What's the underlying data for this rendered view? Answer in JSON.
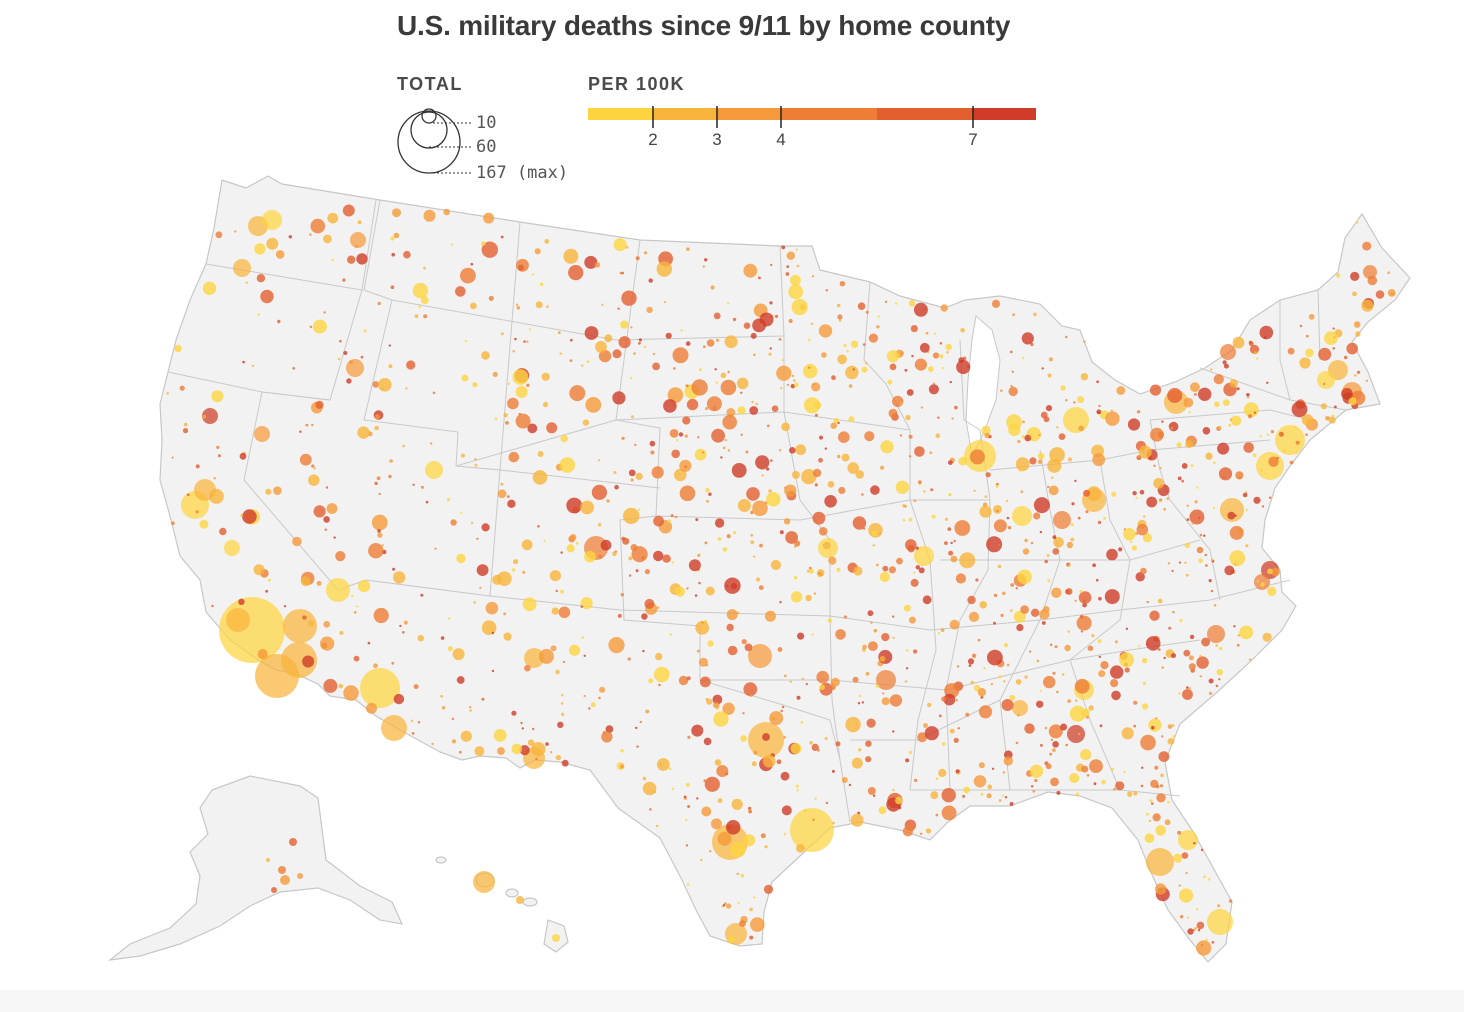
{
  "title": "U.S. military deaths since 9/11 by home county",
  "legend": {
    "total_label": "TOTAL",
    "total_values": [
      {
        "value": 10,
        "label": "10"
      },
      {
        "value": 60,
        "label": "60"
      },
      {
        "value": 167,
        "label": "167 (max)"
      }
    ],
    "rate_label": "PER 100K",
    "rate_ticks": [
      "2",
      "3",
      "4",
      "7"
    ],
    "rate_colors": [
      "#fdd43f",
      "#f9b43b",
      "#f59a3a",
      "#ee7d35",
      "#e45f2e",
      "#cf3c27"
    ]
  },
  "colors": {
    "land": "#f2f2f2",
    "state_border": "#c7c7c7",
    "text": "#3a3a3a"
  },
  "regions": [
    "Alaska",
    "Hawaii",
    "Contiguous United States"
  ]
}
